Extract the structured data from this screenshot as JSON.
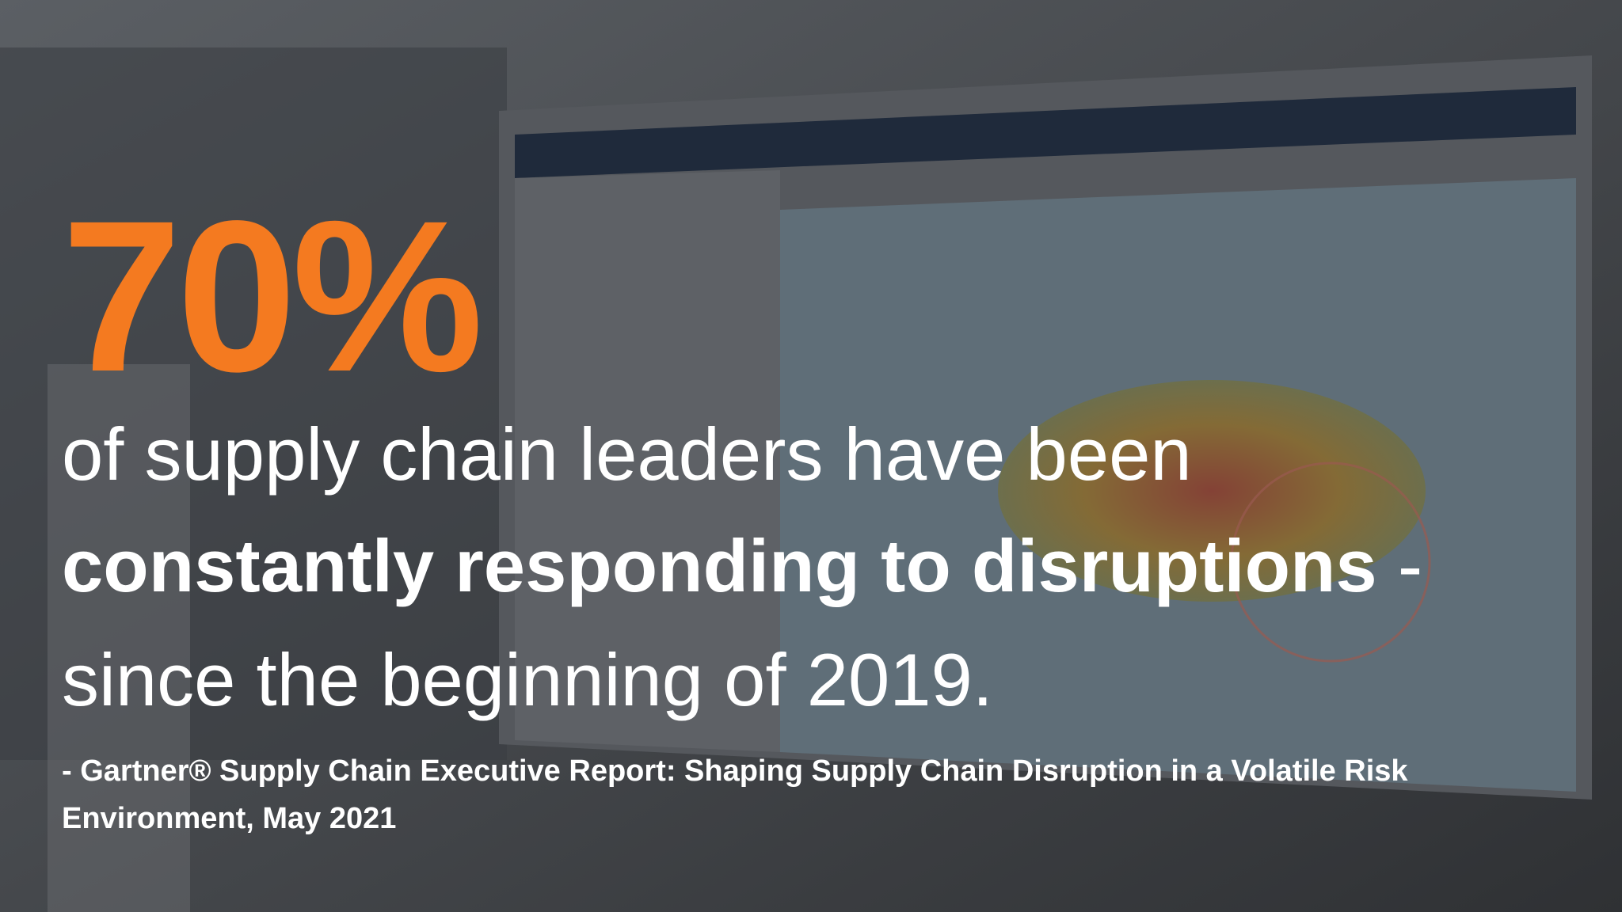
{
  "stat": "70%",
  "statement": {
    "line1": "of supply chain leaders have been",
    "emphasis": "constantly responding to disruptions",
    "dash": " -",
    "line3": "since the beginning of 2019."
  },
  "citation": {
    "line1": "- Gartner® Supply Chain Executive Report: Shaping Supply Chain Disruption in a Volatile Risk",
    "line2": "Environment, May 2021"
  }
}
